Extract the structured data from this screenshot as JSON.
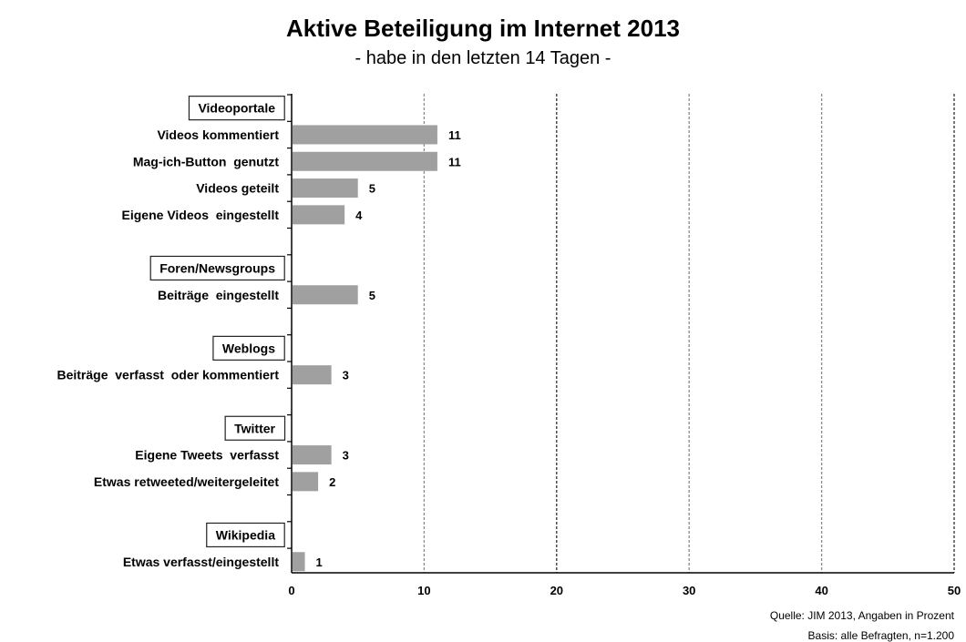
{
  "chart_data": {
    "type": "bar",
    "orientation": "horizontal",
    "title": "Aktive Beteiligung im Internet 2013",
    "subtitle": "- habe in den letzten 14 Tagen -",
    "xlim": [
      0,
      50
    ],
    "xticks": [
      0,
      10,
      20,
      30,
      40,
      50
    ],
    "grid": true,
    "bar_color": "#a0a0a0",
    "rows": [
      {
        "kind": "group",
        "label": "Videoportale"
      },
      {
        "kind": "bar",
        "label": "Videos kommentiert",
        "value": 11
      },
      {
        "kind": "bar",
        "label": "Mag-ich-Button  genutzt",
        "value": 11
      },
      {
        "kind": "bar",
        "label": "Videos geteilt",
        "value": 5
      },
      {
        "kind": "bar",
        "label": "Eigene Videos  eingestellt",
        "value": 4
      },
      {
        "kind": "spacer"
      },
      {
        "kind": "group",
        "label": "Foren/Newsgroups"
      },
      {
        "kind": "bar",
        "label": "Beiträge  eingestellt",
        "value": 5
      },
      {
        "kind": "spacer"
      },
      {
        "kind": "group",
        "label": "Weblogs"
      },
      {
        "kind": "bar",
        "label": "Beiträge  verfasst  oder kommentiert",
        "value": 3
      },
      {
        "kind": "spacer"
      },
      {
        "kind": "group",
        "label": "Twitter"
      },
      {
        "kind": "bar",
        "label": "Eigene Tweets  verfasst",
        "value": 3
      },
      {
        "kind": "bar",
        "label": "Etwas retweeted/weitergeleitet",
        "value": 2
      },
      {
        "kind": "spacer"
      },
      {
        "kind": "group",
        "label": "Wikipedia"
      },
      {
        "kind": "bar",
        "label": "Etwas verfasst/eingestellt",
        "value": 1
      }
    ]
  },
  "source": {
    "line1": "Quelle: JIM 2013, Angaben in Prozent",
    "line2": "Basis: alle Befragten, n=1.200"
  }
}
